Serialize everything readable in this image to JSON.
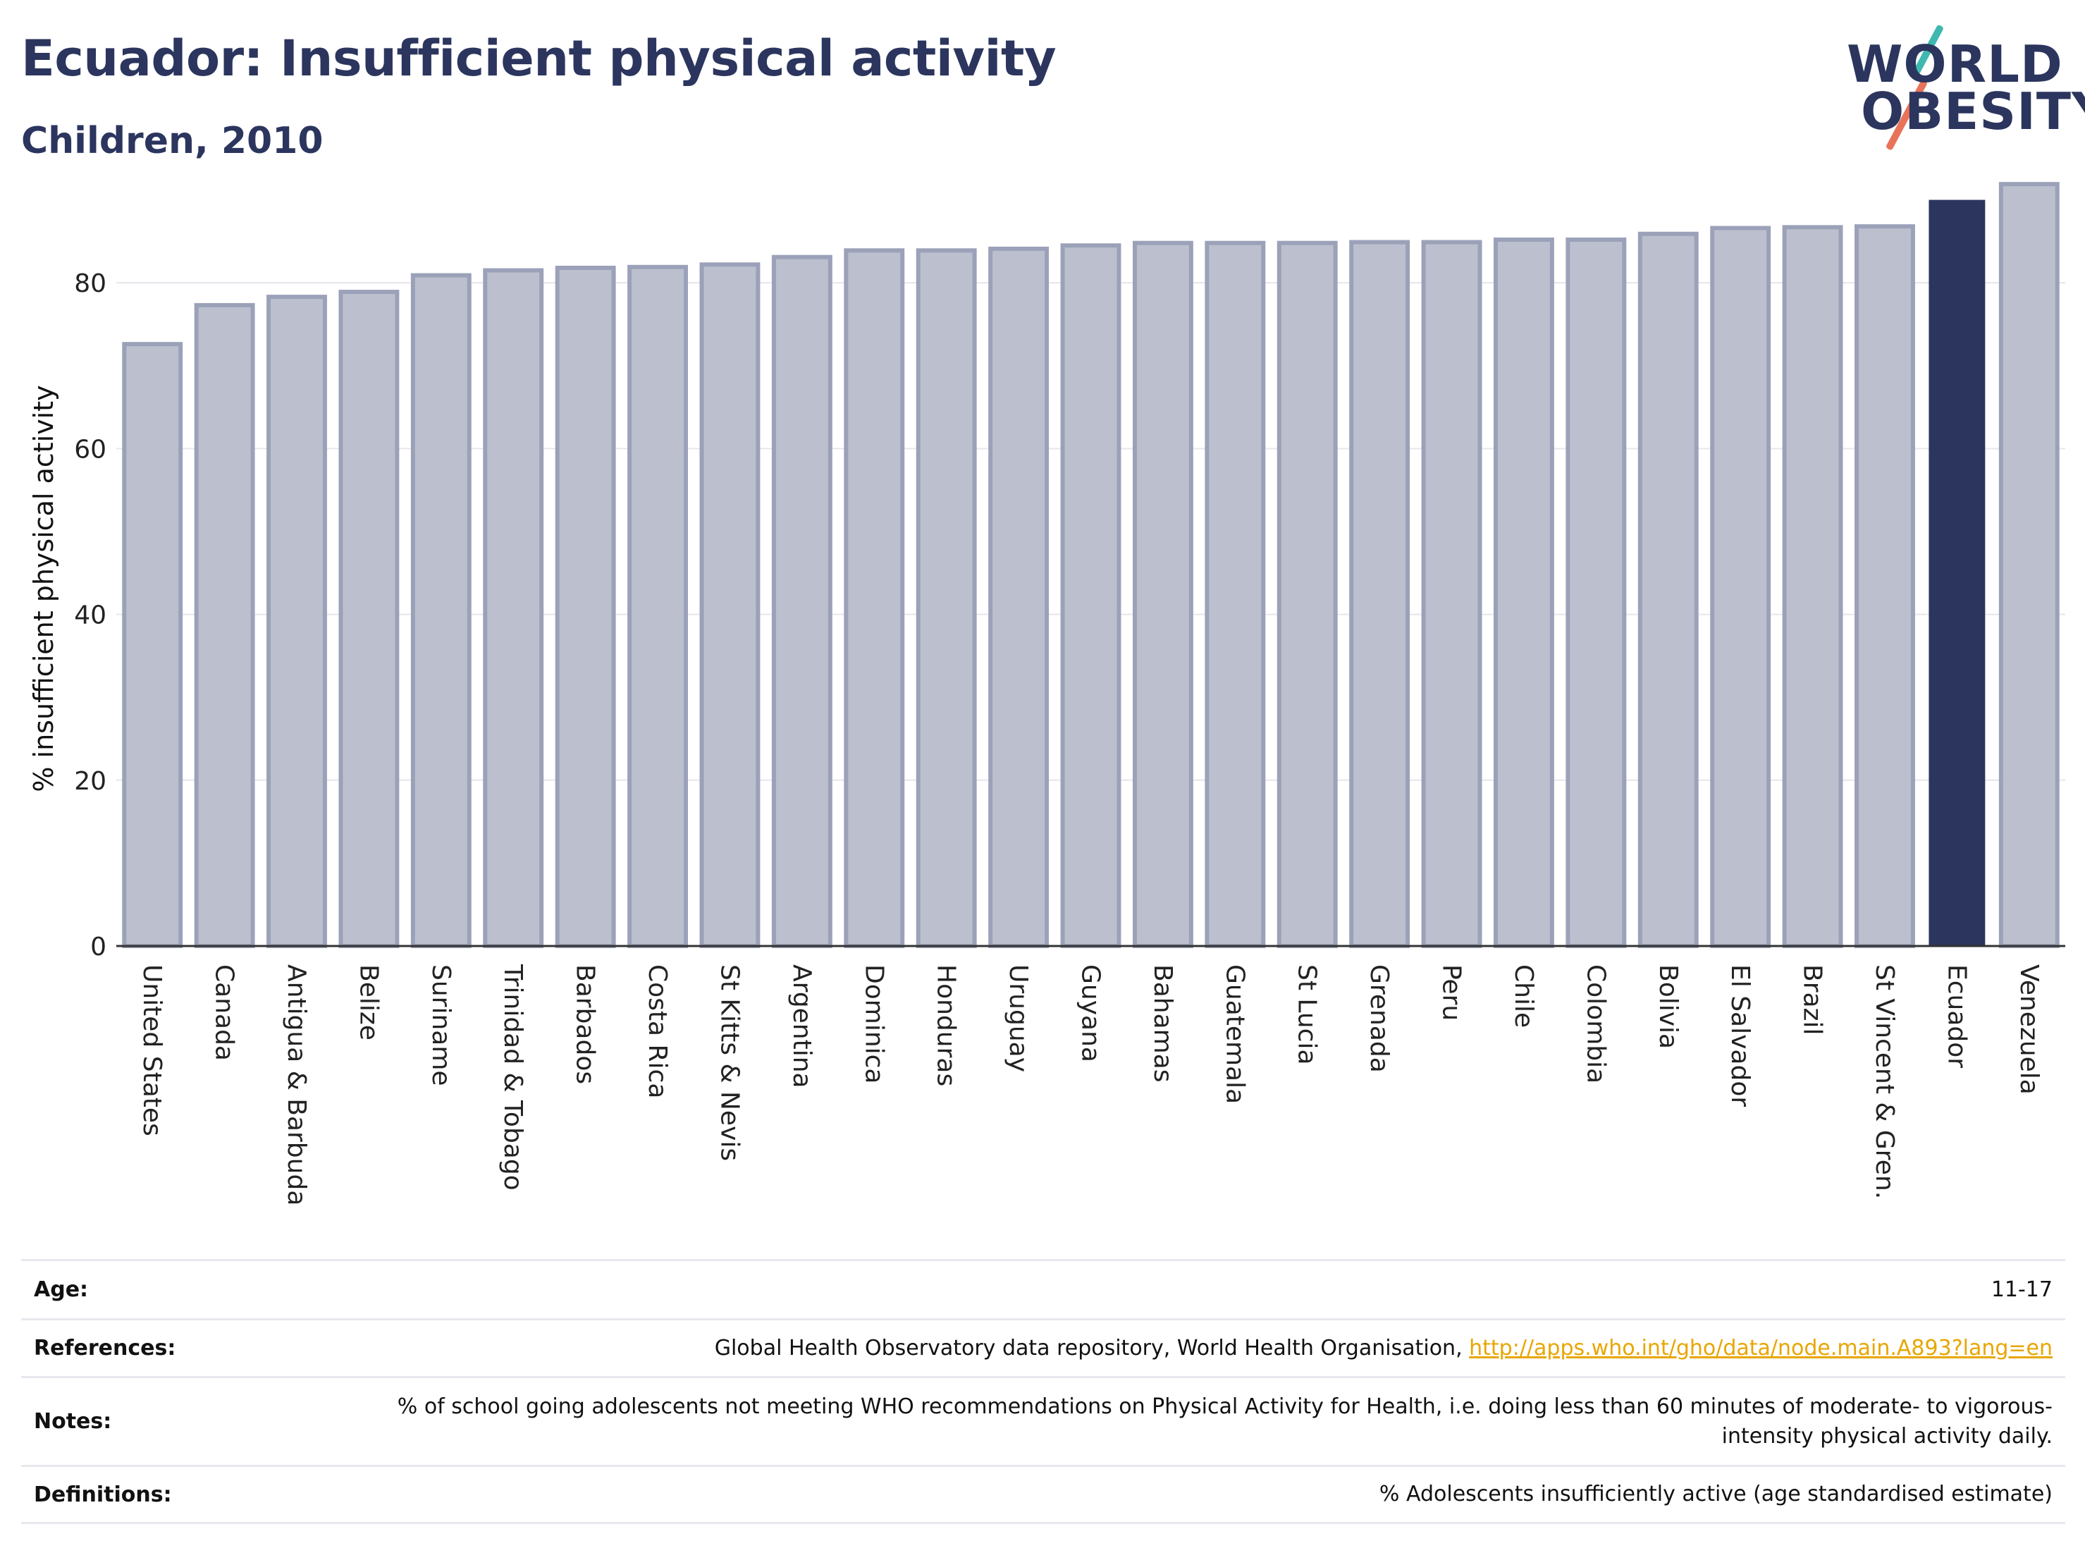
{
  "header": {
    "title": "Ecuador: Insufficient physical activity",
    "subtitle": "Children, 2010"
  },
  "logo": {
    "line1": "WORLD",
    "line2": "OBESITY"
  },
  "chart_data": {
    "type": "bar",
    "title": "Ecuador: Insufficient physical activity",
    "subtitle": "Children, 2010",
    "xlabel": "",
    "ylabel": "% insufficient physical activity",
    "ylim": [
      0,
      92
    ],
    "yticks": [
      0,
      20,
      40,
      60,
      80
    ],
    "grid": true,
    "highlight": "Ecuador",
    "colors": {
      "bar_fill": "#bcc0ce",
      "bar_edge": "#9ba1b8",
      "highlight": "#2b355e",
      "grid": "#e6e6ec",
      "axis": "#333333"
    },
    "categories": [
      "United States",
      "Canada",
      "Antigua & Barbuda",
      "Belize",
      "Suriname",
      "Trinidad & Tobago",
      "Barbados",
      "Costa Rica",
      "St Kitts & Nevis",
      "Argentina",
      "Dominica",
      "Honduras",
      "Uruguay",
      "Guyana",
      "Bahamas",
      "Guatemala",
      "St Lucia",
      "Grenada",
      "Peru",
      "Chile",
      "Colombia",
      "Bolivia",
      "El Salvador",
      "Brazil",
      "St Vincent & Gren.",
      "Ecuador",
      "Venezuela"
    ],
    "values": [
      72.6,
      77.3,
      78.3,
      78.9,
      80.9,
      81.5,
      81.8,
      81.9,
      82.2,
      83.1,
      83.9,
      83.9,
      84.1,
      84.5,
      84.8,
      84.8,
      84.8,
      84.9,
      84.9,
      85.2,
      85.2,
      85.9,
      86.6,
      86.7,
      86.8,
      90.0,
      91.9
    ]
  },
  "meta": {
    "age": {
      "label": "Age:",
      "value": "11-17"
    },
    "references": {
      "label": "References:",
      "value": "Global Health Observatory data repository, World Health Organisation, ",
      "link": "http://apps.who.int/gho/data/node.main.A893?lang=en"
    },
    "notes": {
      "label": "Notes:",
      "value": "% of school going adolescents not meeting WHO recommendations on Physical Activity for Health, i.e. doing less than 60 minutes of moderate- to vigorous-intensity physical activity daily."
    },
    "definitions": {
      "label": "Definitions:",
      "value": "% Adolescents insufficiently active (age standardised estimate)"
    }
  }
}
